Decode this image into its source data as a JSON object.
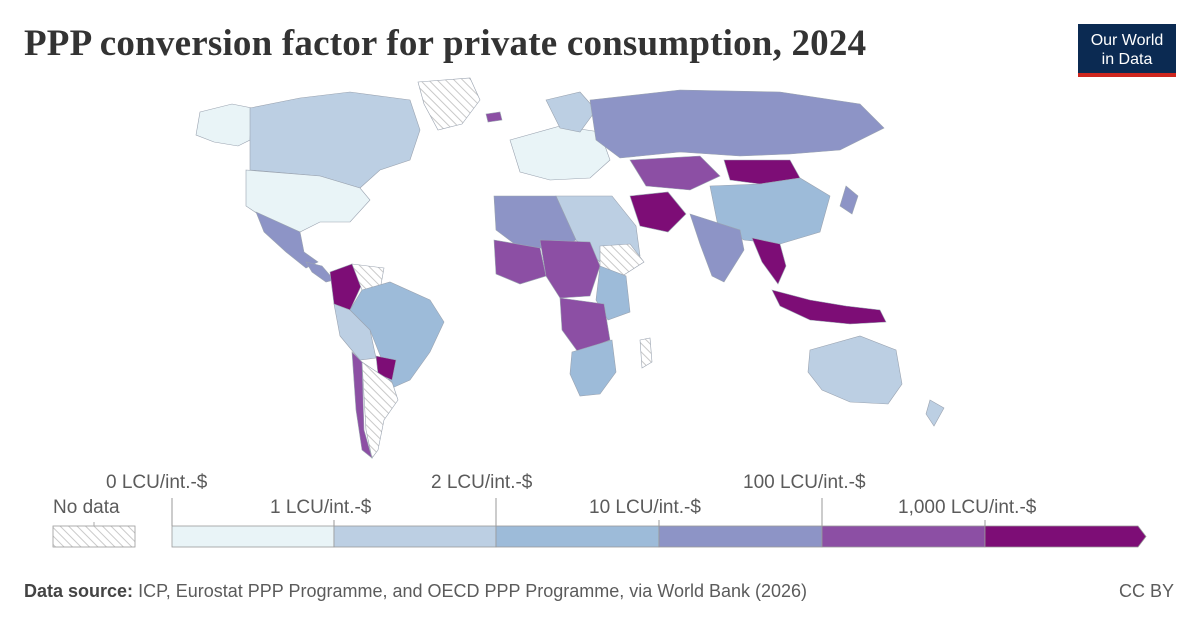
{
  "header": {
    "title": "PPP conversion factor for private consumption, 2024",
    "logo_line1": "Our World",
    "logo_line2": "in Data"
  },
  "legend": {
    "no_data_label": "No data",
    "bins": [
      {
        "label": "0 LCU/int.-$",
        "color": "#e9f4f7"
      },
      {
        "label": "1 LCU/int.-$",
        "color": "#bccfe3"
      },
      {
        "label": "2 LCU/int.-$",
        "color": "#9dbbd9"
      },
      {
        "label": "10 LCU/int.-$",
        "color": "#8d94c6"
      },
      {
        "label": "100 LCU/int.-$",
        "color": "#8c4fa4"
      },
      {
        "label": "1,000 LCU/int.-$",
        "color": "#7d0d76"
      }
    ]
  },
  "colors": {
    "bin1": "#e9f4f7",
    "bin2": "#bccfe3",
    "bin3": "#9dbbd9",
    "bin4": "#8d94c6",
    "bin5": "#8c4fa4",
    "bin6": "#7d0d76",
    "no_data_hatch": "#cfcfcf",
    "logo_bg": "#0b2a52",
    "logo_bar": "#ce261e"
  },
  "footer": {
    "source_label": "Data source:",
    "source_text": "ICP, Eurostat PPP Programme, and OECD PPP Programme, via World Bank (2026)",
    "license": "CC BY"
  }
}
